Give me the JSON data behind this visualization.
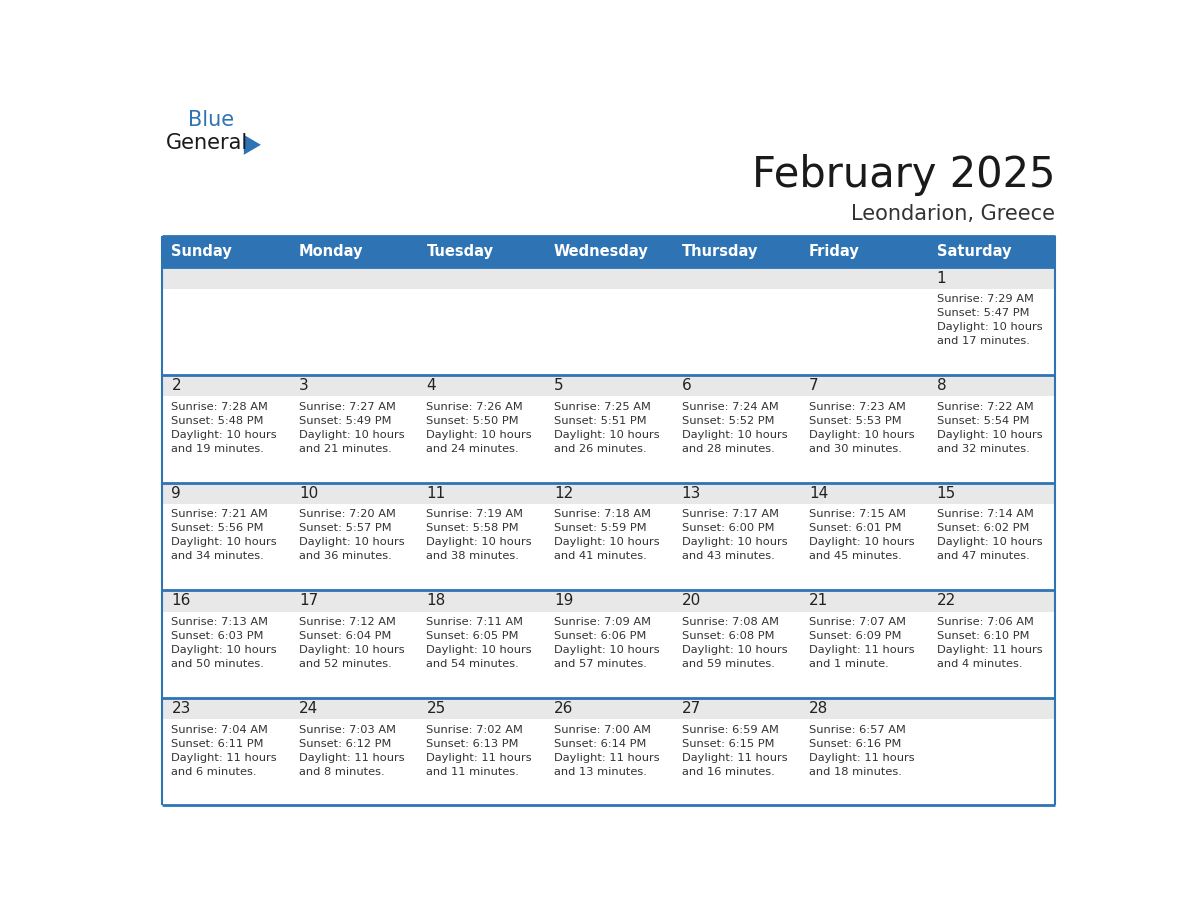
{
  "title": "February 2025",
  "subtitle": "Leondarion, Greece",
  "header_bg": "#2E74B5",
  "header_text_color": "#FFFFFF",
  "cell_top_bg": "#E8E8E8",
  "cell_main_bg": "#FFFFFF",
  "row_border_color": "#2E74B5",
  "day_number_color": "#222222",
  "info_text_color": "#333333",
  "days_of_week": [
    "Sunday",
    "Monday",
    "Tuesday",
    "Wednesday",
    "Thursday",
    "Friday",
    "Saturday"
  ],
  "calendar_data": [
    [
      null,
      null,
      null,
      null,
      null,
      null,
      {
        "day": 1,
        "sunrise": "7:29 AM",
        "sunset": "5:47 PM",
        "daylight": "10 hours\nand 17 minutes."
      }
    ],
    [
      {
        "day": 2,
        "sunrise": "7:28 AM",
        "sunset": "5:48 PM",
        "daylight": "10 hours\nand 19 minutes."
      },
      {
        "day": 3,
        "sunrise": "7:27 AM",
        "sunset": "5:49 PM",
        "daylight": "10 hours\nand 21 minutes."
      },
      {
        "day": 4,
        "sunrise": "7:26 AM",
        "sunset": "5:50 PM",
        "daylight": "10 hours\nand 24 minutes."
      },
      {
        "day": 5,
        "sunrise": "7:25 AM",
        "sunset": "5:51 PM",
        "daylight": "10 hours\nand 26 minutes."
      },
      {
        "day": 6,
        "sunrise": "7:24 AM",
        "sunset": "5:52 PM",
        "daylight": "10 hours\nand 28 minutes."
      },
      {
        "day": 7,
        "sunrise": "7:23 AM",
        "sunset": "5:53 PM",
        "daylight": "10 hours\nand 30 minutes."
      },
      {
        "day": 8,
        "sunrise": "7:22 AM",
        "sunset": "5:54 PM",
        "daylight": "10 hours\nand 32 minutes."
      }
    ],
    [
      {
        "day": 9,
        "sunrise": "7:21 AM",
        "sunset": "5:56 PM",
        "daylight": "10 hours\nand 34 minutes."
      },
      {
        "day": 10,
        "sunrise": "7:20 AM",
        "sunset": "5:57 PM",
        "daylight": "10 hours\nand 36 minutes."
      },
      {
        "day": 11,
        "sunrise": "7:19 AM",
        "sunset": "5:58 PM",
        "daylight": "10 hours\nand 38 minutes."
      },
      {
        "day": 12,
        "sunrise": "7:18 AM",
        "sunset": "5:59 PM",
        "daylight": "10 hours\nand 41 minutes."
      },
      {
        "day": 13,
        "sunrise": "7:17 AM",
        "sunset": "6:00 PM",
        "daylight": "10 hours\nand 43 minutes."
      },
      {
        "day": 14,
        "sunrise": "7:15 AM",
        "sunset": "6:01 PM",
        "daylight": "10 hours\nand 45 minutes."
      },
      {
        "day": 15,
        "sunrise": "7:14 AM",
        "sunset": "6:02 PM",
        "daylight": "10 hours\nand 47 minutes."
      }
    ],
    [
      {
        "day": 16,
        "sunrise": "7:13 AM",
        "sunset": "6:03 PM",
        "daylight": "10 hours\nand 50 minutes."
      },
      {
        "day": 17,
        "sunrise": "7:12 AM",
        "sunset": "6:04 PM",
        "daylight": "10 hours\nand 52 minutes."
      },
      {
        "day": 18,
        "sunrise": "7:11 AM",
        "sunset": "6:05 PM",
        "daylight": "10 hours\nand 54 minutes."
      },
      {
        "day": 19,
        "sunrise": "7:09 AM",
        "sunset": "6:06 PM",
        "daylight": "10 hours\nand 57 minutes."
      },
      {
        "day": 20,
        "sunrise": "7:08 AM",
        "sunset": "6:08 PM",
        "daylight": "10 hours\nand 59 minutes."
      },
      {
        "day": 21,
        "sunrise": "7:07 AM",
        "sunset": "6:09 PM",
        "daylight": "11 hours\nand 1 minute."
      },
      {
        "day": 22,
        "sunrise": "7:06 AM",
        "sunset": "6:10 PM",
        "daylight": "11 hours\nand 4 minutes."
      }
    ],
    [
      {
        "day": 23,
        "sunrise": "7:04 AM",
        "sunset": "6:11 PM",
        "daylight": "11 hours\nand 6 minutes."
      },
      {
        "day": 24,
        "sunrise": "7:03 AM",
        "sunset": "6:12 PM",
        "daylight": "11 hours\nand 8 minutes."
      },
      {
        "day": 25,
        "sunrise": "7:02 AM",
        "sunset": "6:13 PM",
        "daylight": "11 hours\nand 11 minutes."
      },
      {
        "day": 26,
        "sunrise": "7:00 AM",
        "sunset": "6:14 PM",
        "daylight": "11 hours\nand 13 minutes."
      },
      {
        "day": 27,
        "sunrise": "6:59 AM",
        "sunset": "6:15 PM",
        "daylight": "11 hours\nand 16 minutes."
      },
      {
        "day": 28,
        "sunrise": "6:57 AM",
        "sunset": "6:16 PM",
        "daylight": "11 hours\nand 18 minutes."
      },
      null
    ]
  ],
  "logo_general_color": "#1a1a1a",
  "logo_blue_color": "#2E74B5",
  "logo_triangle_color": "#2E74B5",
  "title_color": "#1a1a1a",
  "subtitle_color": "#333333"
}
